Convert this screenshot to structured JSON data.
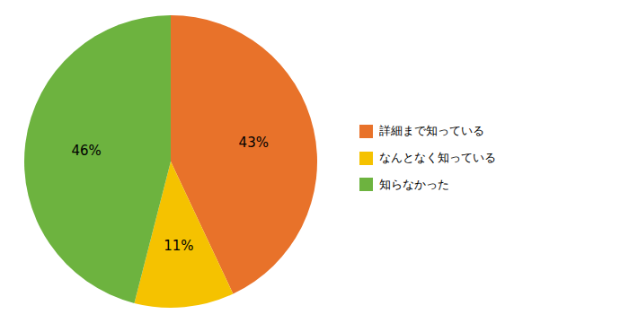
{
  "chart_data": {
    "type": "pie",
    "categories": [
      "詳細まで知っている",
      "なんとなく知っている",
      "知らなかった"
    ],
    "values": [
      43,
      11,
      46
    ],
    "value_labels": [
      "43%",
      "11%",
      "46%"
    ],
    "colors": [
      "#E8722A",
      "#F5C200",
      "#6DB33F"
    ],
    "data_labels": true,
    "legend": "right"
  }
}
